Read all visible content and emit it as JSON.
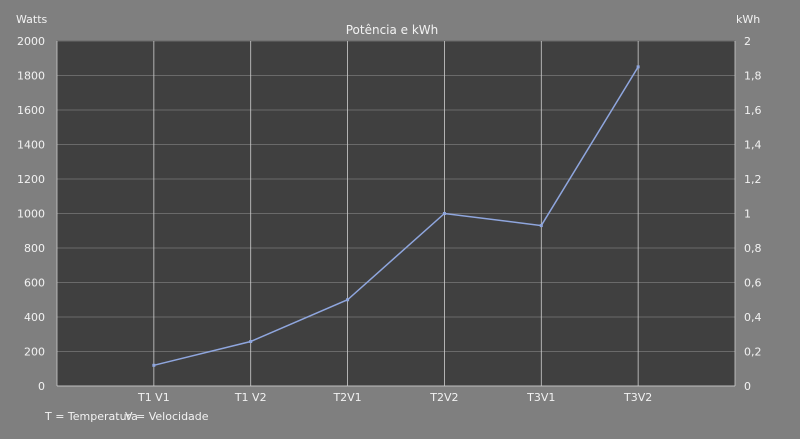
{
  "chart_data": {
    "type": "line",
    "title": "Potência e kWh",
    "ylabel": "Watts",
    "y2label": "kWh",
    "categories": [
      "T1 V1",
      "T1 V2",
      "T2V1",
      "T2V2",
      "T3V1",
      "T3V2"
    ],
    "series": [
      {
        "name": "Potência",
        "values": [
          120,
          258,
          500,
          1000,
          930,
          1850
        ],
        "color": "#8fa6de"
      }
    ],
    "ylim": [
      0,
      2000
    ],
    "y2lim": [
      0,
      2
    ],
    "yticks": [
      "0",
      "200",
      "400",
      "600",
      "800",
      "1000",
      "1200",
      "1400",
      "1600",
      "1800",
      "2000"
    ],
    "y2ticks": [
      "0",
      "0,2",
      "0,4",
      "0,6",
      "0,8",
      "1",
      "1,2",
      "1,4",
      "1,6",
      "1,8",
      "2"
    ],
    "grid": true,
    "notes": [
      "T = Temperatura",
      "V = Velocidade"
    ]
  }
}
